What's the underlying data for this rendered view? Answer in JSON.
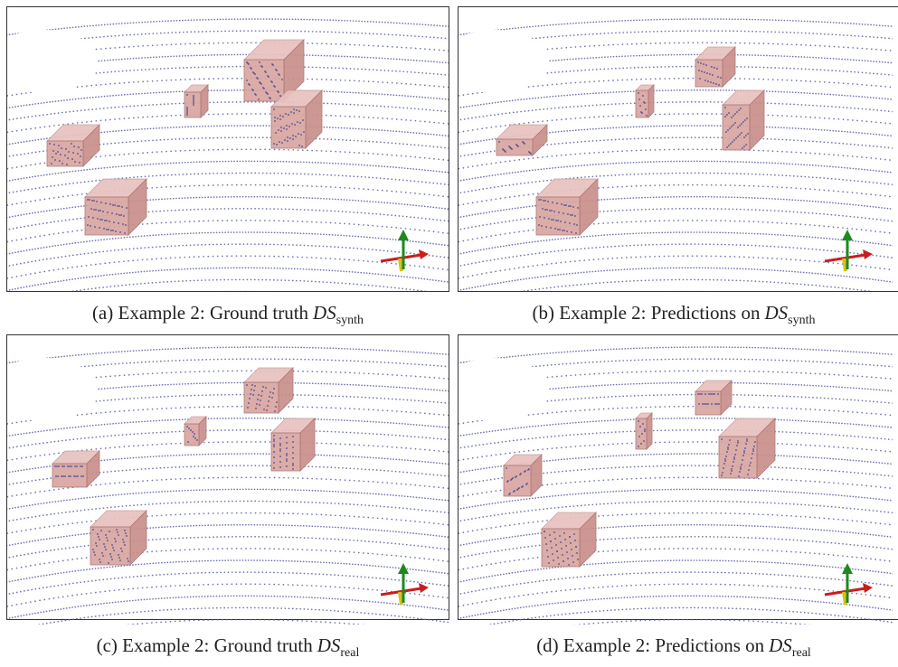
{
  "panels": [
    {
      "caption": "(a) Example 2: Ground truth",
      "symbol": "DS",
      "subscript": "synth"
    },
    {
      "caption": "(b) Example 2: Predictions on",
      "symbol": "DS",
      "subscript": "synth"
    },
    {
      "caption": "(c) Example 2: Ground truth",
      "symbol": "DS",
      "subscript": "real"
    },
    {
      "caption": "(d) Example 2: Predictions on",
      "symbol": "DS",
      "subscript": "real"
    }
  ]
}
